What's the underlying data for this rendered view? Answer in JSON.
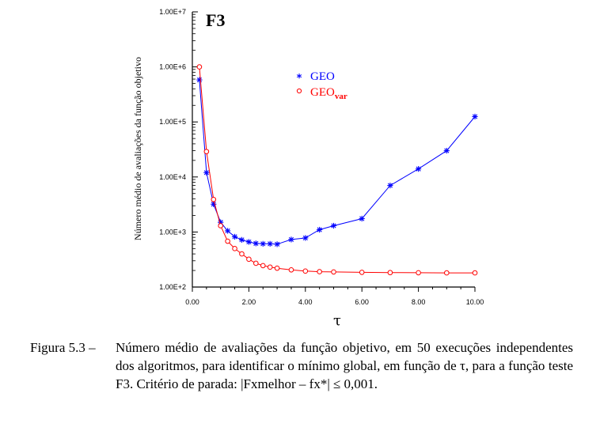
{
  "chart_data": {
    "type": "line",
    "title": "F3",
    "xlabel": "τ",
    "ylabel": "Número médio de avaliações da função objetivo",
    "yscale": "log",
    "xlim": [
      0,
      10
    ],
    "ylim": [
      100,
      10000000
    ],
    "x_ticks": [
      0,
      2,
      4,
      6,
      8,
      10
    ],
    "x_tick_labels": [
      "0.00",
      "2.00",
      "4.00",
      "6.00",
      "8.00",
      "10.00"
    ],
    "y_ticks": [
      100,
      1000,
      10000,
      100000,
      1000000,
      10000000
    ],
    "y_tick_labels": [
      "1.00E+2",
      "1.00E+3",
      "1.00E+4",
      "1.00E+5",
      "1.00E+6",
      "1.00E+7"
    ],
    "legend_position": "top-center",
    "series": [
      {
        "name": "GEO",
        "marker": "*",
        "color": "#0000ff",
        "x": [
          0.25,
          0.5,
          0.75,
          1.0,
          1.25,
          1.5,
          1.75,
          2.0,
          2.25,
          2.5,
          2.75,
          3.0,
          3.5,
          4.0,
          4.5,
          5.0,
          6.0,
          7.0,
          8.0,
          9.0,
          10.0
        ],
        "y": [
          580000,
          12000,
          3200,
          1500,
          1050,
          820,
          720,
          660,
          620,
          610,
          610,
          600,
          730,
          780,
          1100,
          1300,
          1750,
          7000,
          14000,
          30000,
          125000
        ]
      },
      {
        "name": "GEOvar",
        "marker": "o",
        "color": "#ff0000",
        "x": [
          0.25,
          0.5,
          0.75,
          1.0,
          1.25,
          1.5,
          1.75,
          2.0,
          2.25,
          2.5,
          2.75,
          3.0,
          3.5,
          4.0,
          4.5,
          5.0,
          6.0,
          7.0,
          8.0,
          9.0,
          10.0
        ],
        "y": [
          1000000,
          29000,
          3900,
          1300,
          680,
          500,
          400,
          320,
          270,
          245,
          230,
          220,
          205,
          195,
          190,
          188,
          185,
          183,
          182,
          181,
          181
        ]
      }
    ]
  },
  "legend": {
    "geo_label": "GEO",
    "geovar_label": "GEO",
    "geovar_sub": "var"
  },
  "caption": {
    "label": "Figura 5.3 –",
    "text": "Número médio de avaliações da função objetivo, em 50 execuções independentes dos algoritmos, para identificar o mínimo global, em função de τ, para a função teste F3. Critério de parada: |Fxmelhor – fx*| ≤ 0,001."
  }
}
